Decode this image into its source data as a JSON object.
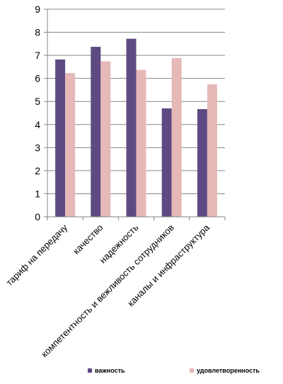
{
  "chart_data": {
    "type": "bar",
    "categories": [
      "тариф на передачу",
      "качество",
      "надежность",
      "компетентность и вежливость сотрудников",
      "каналы и инфраструктура"
    ],
    "series": [
      {
        "name": "важность",
        "values": [
          6.82,
          7.37,
          7.72,
          4.7,
          4.67
        ],
        "color": "#5e4a82"
      },
      {
        "name": "удовлетворенность",
        "values": [
          6.23,
          6.74,
          6.37,
          6.88,
          5.74
        ],
        "color": "#e6b8b8"
      }
    ],
    "ylim": [
      0,
      9
    ],
    "yticks": [
      0,
      1,
      2,
      3,
      4,
      5,
      6,
      7,
      8,
      9
    ],
    "grid": true,
    "legend": "bottom",
    "gridColor": "#868686"
  }
}
